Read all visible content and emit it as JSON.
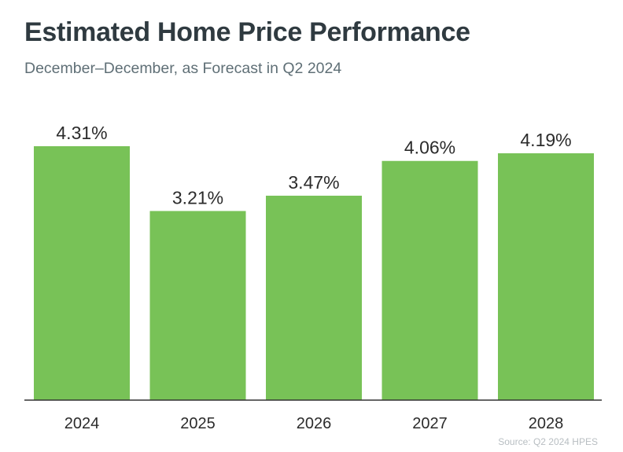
{
  "header": {
    "title": "Estimated Home Price Performance",
    "subtitle": "December–December, as Forecast in Q2 2024"
  },
  "footer": {
    "source": "Source: Q2 2024 HPES"
  },
  "chart_data": {
    "type": "bar",
    "title": "Estimated Home Price Performance",
    "subtitle": "December–December, as Forecast in Q2 2024",
    "categories": [
      "2024",
      "2025",
      "2026",
      "2027",
      "2028"
    ],
    "values": [
      4.31,
      3.21,
      3.47,
      4.06,
      4.19
    ],
    "value_labels": [
      "4.31%",
      "3.21%",
      "3.47%",
      "4.06%",
      "4.19%"
    ],
    "unit": "%",
    "xlabel": "",
    "ylabel": "",
    "ylim": [
      0,
      4.31
    ],
    "grid": false,
    "legend": "none",
    "bar_color": "#78c257",
    "axis_color": "#333333",
    "source": "Source: Q2 2024 HPES"
  }
}
